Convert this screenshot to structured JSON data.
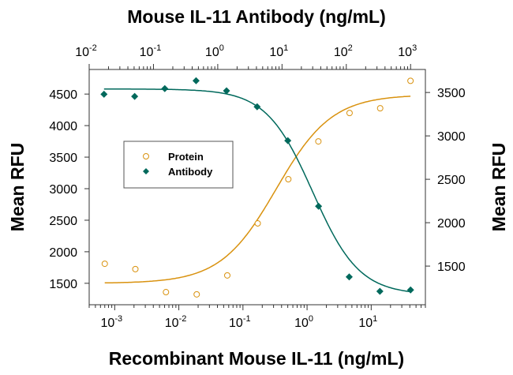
{
  "chart_data": {
    "type": "scatter",
    "title_top": "Mouse IL-11 Antibody (ng/mL)",
    "xlabel": "Recombinant Mouse IL-11 (ng/mL)",
    "ylabel_left": "Mean RFU",
    "ylabel_right": "Mean RFU",
    "x_bottom": {
      "scale": "log",
      "lim": [
        0.0004,
        70
      ],
      "ticks": [
        0.001,
        0.01,
        0.1,
        1,
        10
      ],
      "tick_labels": [
        [
          "10",
          "-3"
        ],
        [
          "10",
          "-2"
        ],
        [
          "10",
          "-1"
        ],
        [
          "10",
          "0"
        ],
        [
          "10",
          "1"
        ]
      ]
    },
    "x_top": {
      "scale": "log",
      "lim": [
        0.01,
        1700
      ],
      "ticks": [
        0.01,
        0.1,
        1,
        10,
        100,
        1000
      ],
      "tick_labels": [
        [
          "10",
          "-2"
        ],
        [
          "10",
          "-1"
        ],
        [
          "10",
          "0"
        ],
        [
          "10",
          "1"
        ],
        [
          "10",
          "2"
        ],
        [
          "10",
          "3"
        ]
      ]
    },
    "y_left": {
      "lim": [
        1160,
        4890
      ],
      "ticks": [
        1500,
        2000,
        2500,
        3000,
        3500,
        4000,
        4500
      ],
      "tick_labels": [
        "1500",
        "2000",
        "2500",
        "3000",
        "3500",
        "4000",
        "4500"
      ]
    },
    "y_right": {
      "lim": [
        1055,
        3765
      ],
      "ticks": [
        1500,
        2000,
        2500,
        3000,
        3500
      ],
      "tick_labels": [
        "1500",
        "2000",
        "2500",
        "3000",
        "3500"
      ]
    },
    "grid": false,
    "legend_placement": "center-left",
    "series": [
      {
        "name": "Protein",
        "x_axis": "bottom",
        "y_axis": "left",
        "marker": "open-circle",
        "color": "#D9920F",
        "x": [
          0.0007,
          0.0021,
          0.0063,
          0.019,
          0.057,
          0.17,
          0.51,
          1.5,
          4.6,
          13.8,
          41
        ],
        "y": [
          1810,
          1725,
          1360,
          1325,
          1625,
          2450,
          3150,
          3750,
          4200,
          4275,
          4710
        ],
        "fit": {
          "bottom": 1500,
          "top": 4490,
          "ec50": 0.33,
          "hill": 1.0
        }
      },
      {
        "name": "Antibody",
        "x_axis": "top",
        "y_axis": "right",
        "marker": "filled-diamond",
        "color": "#00695C",
        "x": [
          0.017,
          0.051,
          0.15,
          0.46,
          1.37,
          4.1,
          12.3,
          37,
          111,
          333,
          1000
        ],
        "y": [
          3480,
          3455,
          3545,
          3635,
          3520,
          3335,
          2945,
          2190,
          1375,
          1210,
          1225
        ],
        "fit": {
          "top": 3540,
          "bottom": 1170,
          "ec50": 30,
          "hill": 1.2
        }
      }
    ]
  }
}
